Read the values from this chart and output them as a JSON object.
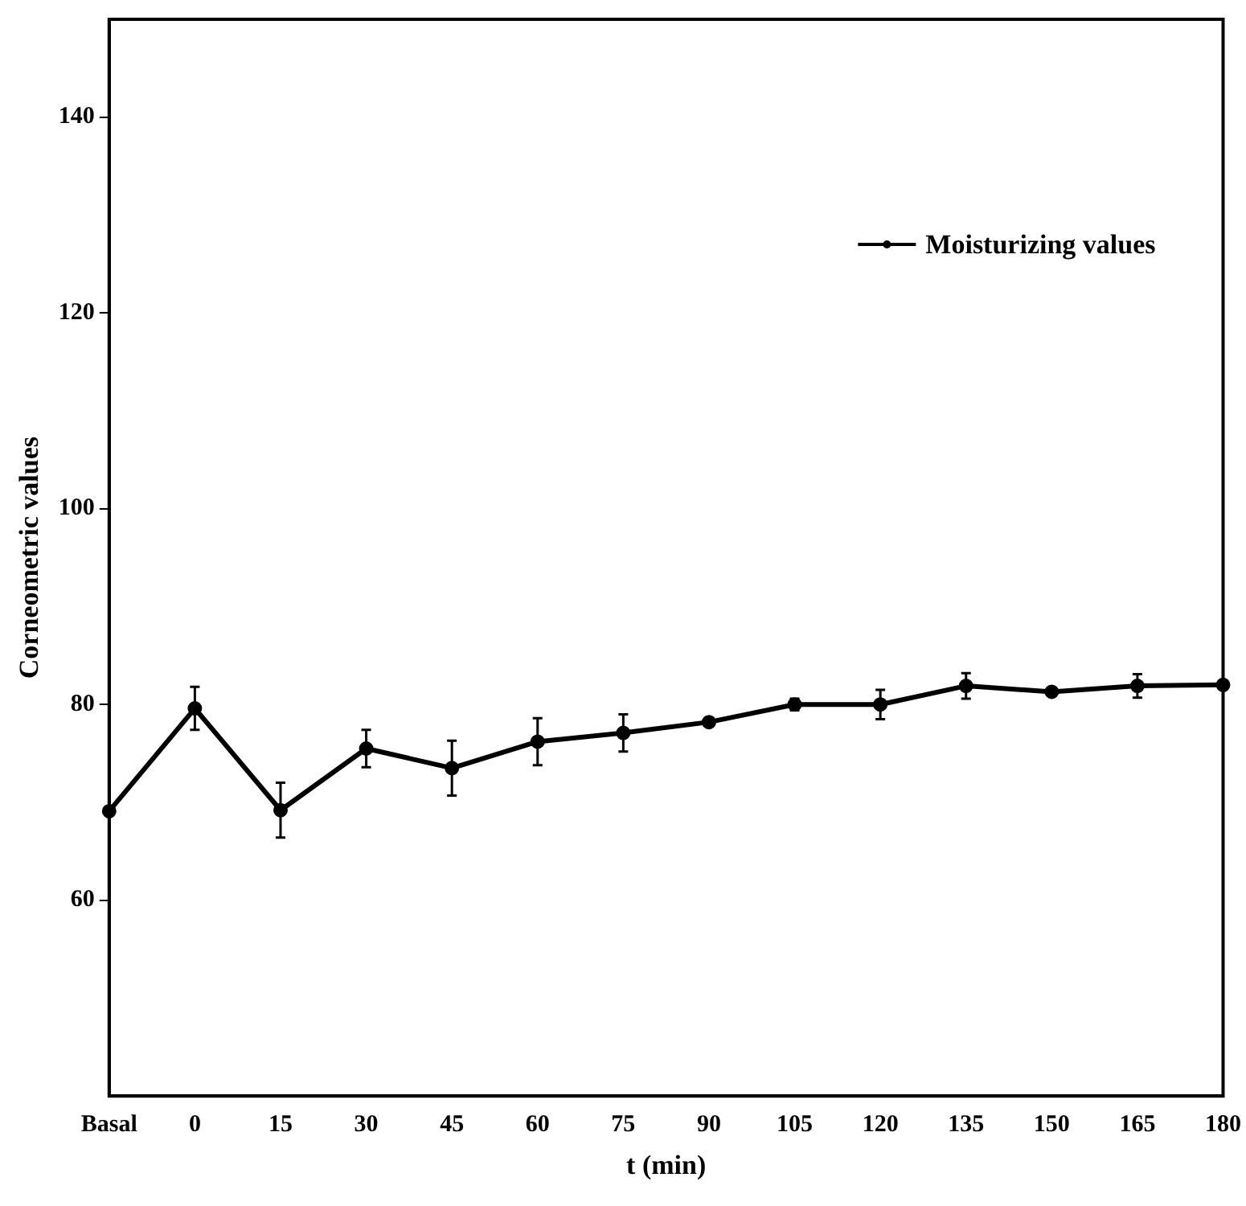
{
  "chart_data": {
    "type": "line",
    "xlabel": "t (min)",
    "ylabel": "Corneometric values",
    "categories": [
      "Basal",
      "0",
      "15",
      "30",
      "45",
      "60",
      "75",
      "90",
      "105",
      "120",
      "135",
      "150",
      "165",
      "180"
    ],
    "series": [
      {
        "name": "Moisturizing values",
        "color": "#000000",
        "values": [
          69.1,
          79.6,
          69.2,
          75.5,
          73.5,
          76.2,
          77.1,
          78.2,
          80.0,
          80.0,
          81.9,
          81.3,
          81.9,
          82.0
        ],
        "errors": [
          null,
          2.2,
          2.8,
          1.9,
          2.8,
          2.4,
          1.9,
          null,
          0.6,
          1.5,
          1.3,
          null,
          1.2,
          null
        ]
      }
    ],
    "ylim": [
      40,
      150
    ],
    "yticks": [
      60,
      80,
      100,
      120,
      140
    ],
    "grid": false,
    "legend": "top right",
    "marker": "circle",
    "line_style": "solid"
  }
}
